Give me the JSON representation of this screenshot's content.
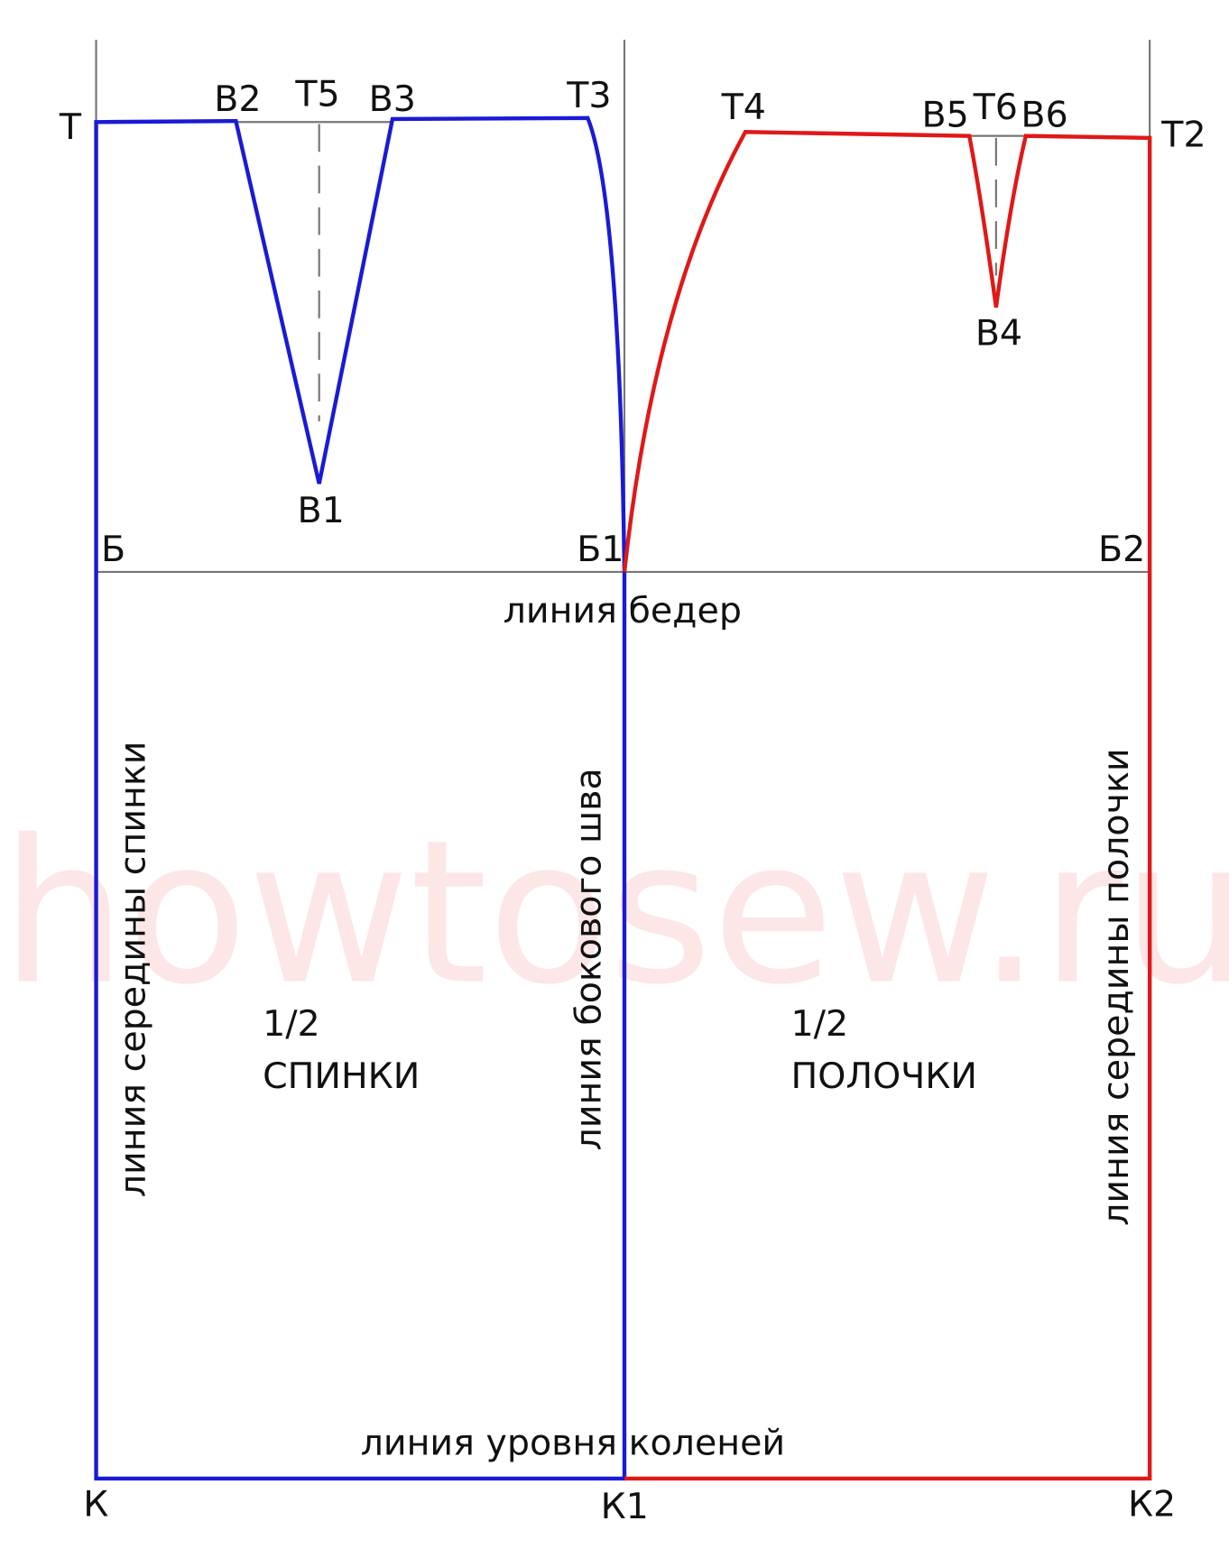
{
  "watermark": "howtosew.ru",
  "points": {
    "t": "Т",
    "v2": "В2",
    "t5": "Т5",
    "v3": "В3",
    "t3": "Т3",
    "t4": "Т4",
    "v5": "В5",
    "t6": "Т6",
    "v6": "В6",
    "t2": "Т2",
    "v1": "В1",
    "v4": "В4",
    "b": "Б",
    "b1": "Б1",
    "b2": "Б2",
    "k": "К",
    "k1": "К1",
    "k2": "К2"
  },
  "lines": {
    "hip": "линия бедер",
    "knee": "линия уровня коленей",
    "back_center": "линия середины спинки",
    "side_seam": "линия бокового шва",
    "front_center": "линия середины полочки"
  },
  "pieces": {
    "back": {
      "fraction": "1/2",
      "name": "СПИНКИ"
    },
    "front": {
      "fraction": "1/2",
      "name": "ПОЛОЧКИ"
    }
  }
}
